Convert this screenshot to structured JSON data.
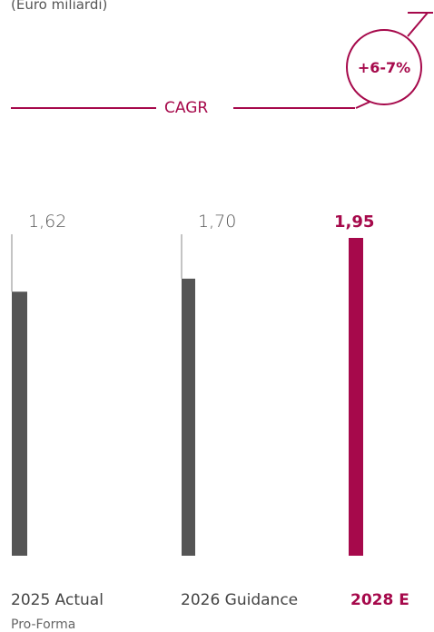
{
  "chart_data": {
    "type": "bar",
    "unit_label": "(Euro miliardi)",
    "categories": [
      "2025 Actual",
      "2026 Guidance",
      "2028 E"
    ],
    "category_sublabels": [
      "Pro-Forma",
      "",
      ""
    ],
    "values": [
      1.62,
      1.7,
      1.95
    ],
    "value_labels": [
      "1,62",
      "1,70",
      "1,95"
    ],
    "highlight_index": 2,
    "cagr_label": "CAGR",
    "cagr_value": "+6-7%",
    "colors": {
      "bar": "#555555",
      "highlight": "#A6094B",
      "baseline": "#888888"
    }
  }
}
